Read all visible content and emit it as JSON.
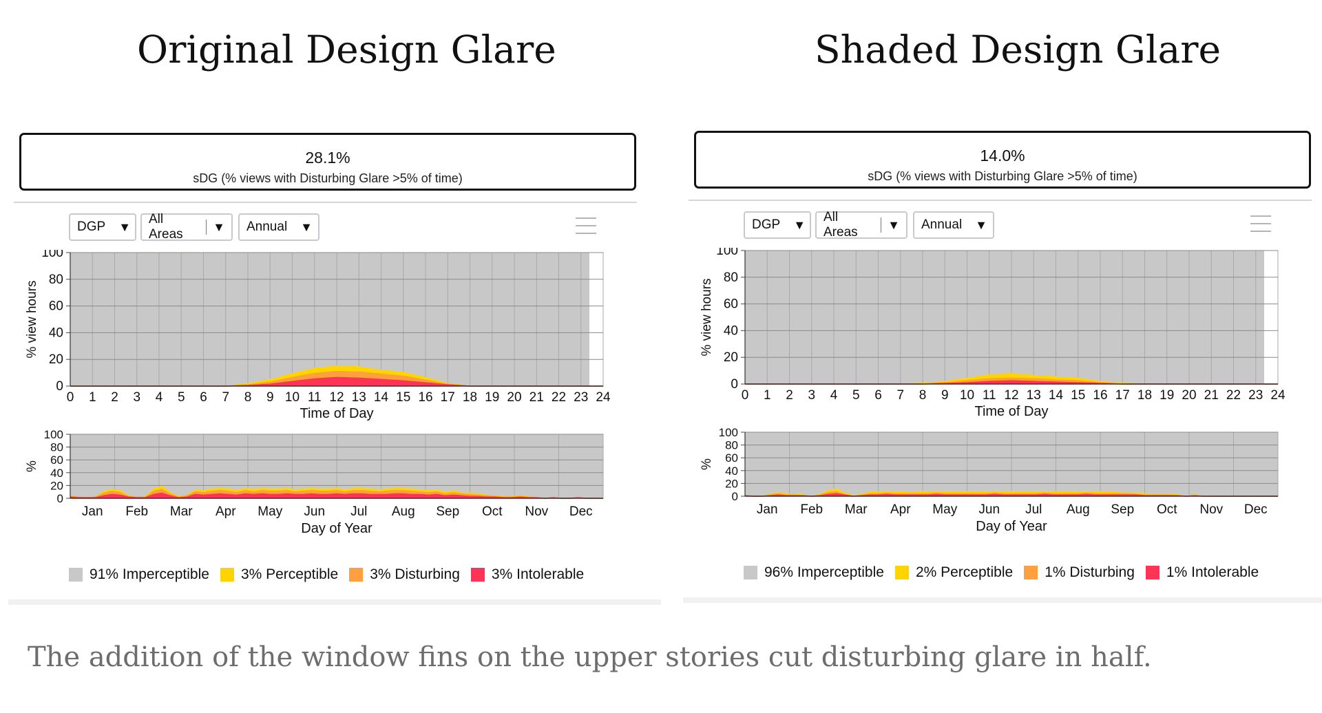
{
  "headings": [
    "Original Design Glare",
    "Shaded Design Glare"
  ],
  "caption": "The addition of the window fins on the upper stories cut disturbing glare in half.",
  "colors": {
    "imperceptible": "#c8c8c8",
    "perceptible": "#ffd400",
    "disturbing": "#ff9f40",
    "intolerable": "#ff3355"
  },
  "panels": [
    {
      "metric_value": "28.1%",
      "metric_caption": "sDG (% views with Disturbing Glare >5% of time)",
      "dropdowns": [
        "DGP",
        "All Areas",
        "Annual"
      ],
      "menu_icon": "hamburger-menu-icon",
      "legend": [
        "91% Imperceptible",
        "3% Perceptible",
        "3% Disturbing",
        "3% Intolerable"
      ]
    },
    {
      "metric_value": "14.0%",
      "metric_caption": "sDG (% views with Disturbing Glare >5% of time)",
      "dropdowns": [
        "DGP",
        "All Areas",
        "Annual"
      ],
      "menu_icon": "hamburger-menu-icon",
      "legend": [
        "96% Imperceptible",
        "2% Perceptible",
        "1% Disturbing",
        "1% Intolerable"
      ]
    }
  ],
  "chart_data": [
    {
      "type": "area",
      "chart": "Original Design Glare - time of day",
      "xlabel": "Time of Day",
      "ylabel": "% view hours",
      "xlim": [
        0,
        24
      ],
      "ylim": [
        0,
        100
      ],
      "x_ticks": [
        "0",
        "1",
        "2",
        "3",
        "4",
        "5",
        "6",
        "7",
        "8",
        "9",
        "10",
        "11",
        "12",
        "13",
        "14",
        "15",
        "16",
        "17",
        "18",
        "19",
        "20",
        "21",
        "22",
        "23",
        "24"
      ],
      "y_ticks": [
        "0",
        "20",
        "40",
        "60",
        "80",
        "100"
      ],
      "x": [
        0,
        1,
        2,
        3,
        4,
        5,
        6,
        7,
        8,
        9,
        10,
        11,
        12,
        13,
        14,
        15,
        16,
        17,
        18,
        19,
        20,
        21,
        22,
        23,
        24
      ],
      "stacking": "cumulative",
      "series": [
        {
          "name": "Intolerable",
          "values": [
            0,
            0,
            0,
            0,
            0,
            0,
            0,
            0,
            0.5,
            1.5,
            3.5,
            5.5,
            6.5,
            6,
            5,
            4,
            2.5,
            1,
            0,
            0,
            0,
            0,
            0,
            0,
            0
          ]
        },
        {
          "name": "Disturbing",
          "values": [
            0,
            0,
            0,
            0,
            0,
            0,
            0,
            0,
            0.5,
            1.5,
            3,
            4,
            4.5,
            4.5,
            4,
            3.5,
            2,
            0.5,
            0,
            0,
            0,
            0,
            0,
            0,
            0
          ]
        },
        {
          "name": "Perceptible",
          "values": [
            0,
            0,
            0,
            0,
            0,
            0,
            0,
            0,
            1,
            2,
            3,
            4,
            4,
            4,
            3,
            3,
            2,
            0.5,
            0,
            0,
            0,
            0,
            0,
            0,
            0
          ]
        }
      ],
      "grid": true
    },
    {
      "type": "area",
      "chart": "Original Design Glare - day of year",
      "xlabel": "Day of Year",
      "ylabel": "%",
      "ylim": [
        0,
        100
      ],
      "x_ticks": [
        "Jan",
        "Feb",
        "Mar",
        "Apr",
        "May",
        "Jun",
        "Jul",
        "Aug",
        "Sep",
        "Oct",
        "Nov",
        "Dec"
      ],
      "y_ticks": [
        "0",
        "20",
        "40",
        "60",
        "80",
        "100"
      ],
      "stacking": "cumulative",
      "series": [
        {
          "name": "Intolerable",
          "values": [
            2,
            1,
            1,
            1,
            4,
            6,
            5,
            2,
            1,
            1,
            6,
            8,
            4,
            1,
            2,
            6,
            5,
            6,
            7,
            6,
            5,
            7,
            6,
            7,
            6,
            6,
            7,
            6,
            6,
            7,
            6,
            6,
            7,
            6,
            7,
            7,
            6,
            6,
            6,
            7,
            7,
            6,
            6,
            5,
            6,
            4,
            5,
            4,
            3,
            3,
            2,
            2,
            1,
            1,
            2,
            1,
            1,
            0,
            1,
            0,
            0,
            1,
            0,
            0,
            0
          ]
        },
        {
          "name": "Disturbing",
          "values": [
            1,
            1,
            0,
            1,
            4,
            5,
            4,
            1,
            1,
            1,
            5,
            6,
            3,
            1,
            2,
            4,
            4,
            5,
            5,
            5,
            4,
            5,
            4,
            5,
            5,
            5,
            5,
            4,
            5,
            5,
            5,
            5,
            5,
            4,
            5,
            5,
            5,
            4,
            5,
            5,
            5,
            5,
            4,
            4,
            4,
            3,
            4,
            3,
            3,
            2,
            2,
            1,
            1,
            1,
            1,
            1,
            0,
            0,
            0,
            0,
            0,
            0,
            0,
            0,
            0
          ]
        },
        {
          "name": "Perceptible",
          "values": [
            1,
            0,
            0,
            0,
            3,
            3,
            3,
            1,
            0,
            1,
            4,
            5,
            2,
            1,
            1,
            3,
            3,
            4,
            4,
            4,
            3,
            4,
            4,
            4,
            4,
            4,
            4,
            3,
            4,
            4,
            4,
            4,
            4,
            3,
            4,
            4,
            4,
            3,
            4,
            4,
            4,
            4,
            3,
            3,
            3,
            3,
            3,
            2,
            2,
            2,
            1,
            1,
            1,
            1,
            1,
            1,
            0,
            0,
            0,
            0,
            0,
            0,
            0,
            0,
            0
          ]
        }
      ],
      "grid": true
    },
    {
      "type": "area",
      "chart": "Shaded Design Glare - time of day",
      "xlabel": "Time of Day",
      "ylabel": "% view hours",
      "xlim": [
        0,
        24
      ],
      "ylim": [
        0,
        100
      ],
      "x_ticks": [
        "0",
        "1",
        "2",
        "3",
        "4",
        "5",
        "6",
        "7",
        "8",
        "9",
        "10",
        "11",
        "12",
        "13",
        "14",
        "15",
        "16",
        "17",
        "18",
        "19",
        "20",
        "21",
        "22",
        "23",
        "24"
      ],
      "y_ticks": [
        "0",
        "20",
        "40",
        "60",
        "80",
        "100"
      ],
      "x": [
        0,
        1,
        2,
        3,
        4,
        5,
        6,
        7,
        8,
        9,
        10,
        11,
        12,
        13,
        14,
        15,
        16,
        17,
        18,
        19,
        20,
        21,
        22,
        23,
        24
      ],
      "stacking": "cumulative",
      "series": [
        {
          "name": "Intolerable",
          "values": [
            0,
            0,
            0,
            0,
            0,
            0,
            0,
            0,
            0,
            0.5,
            1,
            2,
            2.5,
            2,
            1.5,
            1,
            0.5,
            0,
            0,
            0,
            0,
            0,
            0,
            0,
            0
          ]
        },
        {
          "name": "Disturbing",
          "values": [
            0,
            0,
            0,
            0,
            0,
            0,
            0,
            0,
            0,
            0.5,
            1.5,
            2,
            2,
            2,
            1.5,
            1.5,
            0.5,
            0,
            0,
            0,
            0,
            0,
            0,
            0,
            0
          ]
        },
        {
          "name": "Perceptible",
          "values": [
            0,
            0,
            0,
            0,
            0,
            0,
            0,
            0,
            0.5,
            1,
            2,
            3,
            3.5,
            2.5,
            2.5,
            2,
            1,
            0.5,
            0,
            0,
            0,
            0,
            0,
            0,
            0
          ]
        }
      ],
      "grid": true
    },
    {
      "type": "area",
      "chart": "Shaded Design Glare - day of year",
      "xlabel": "Day of Year",
      "ylabel": "%",
      "ylim": [
        0,
        100
      ],
      "x_ticks": [
        "Jan",
        "Feb",
        "Mar",
        "Apr",
        "May",
        "Jun",
        "Jul",
        "Aug",
        "Sep",
        "Oct",
        "Nov",
        "Dec"
      ],
      "y_ticks": [
        "0",
        "20",
        "40",
        "60",
        "80",
        "100"
      ],
      "stacking": "cumulative",
      "series": [
        {
          "name": "Intolerable",
          "values": [
            1,
            0,
            0,
            1,
            2,
            1,
            1,
            1,
            0,
            1,
            3,
            4,
            2,
            0,
            1,
            2,
            2,
            3,
            2,
            2,
            2,
            2,
            2,
            3,
            2,
            2,
            2,
            2,
            2,
            2,
            3,
            2,
            2,
            2,
            2,
            2,
            3,
            2,
            2,
            2,
            2,
            3,
            2,
            2,
            2,
            2,
            2,
            2,
            1,
            1,
            1,
            1,
            1,
            0,
            1,
            0,
            0,
            0,
            0,
            0,
            0,
            0,
            0,
            0,
            0
          ]
        },
        {
          "name": "Disturbing",
          "values": [
            0,
            0,
            0,
            1,
            2,
            1,
            1,
            0,
            0,
            1,
            3,
            3,
            1,
            0,
            1,
            2,
            2,
            2,
            2,
            2,
            2,
            2,
            2,
            2,
            2,
            2,
            2,
            2,
            2,
            2,
            2,
            2,
            2,
            2,
            2,
            2,
            2,
            2,
            2,
            2,
            2,
            2,
            2,
            2,
            2,
            2,
            2,
            1,
            1,
            1,
            1,
            1,
            0,
            0,
            0,
            0,
            0,
            0,
            0,
            0,
            0,
            0,
            0,
            0,
            0
          ]
        },
        {
          "name": "Perceptible",
          "values": [
            1,
            0,
            0,
            1,
            2,
            2,
            1,
            1,
            0,
            1,
            3,
            4,
            2,
            1,
            1,
            3,
            3,
            3,
            3,
            3,
            2,
            3,
            3,
            3,
            3,
            3,
            3,
            3,
            3,
            3,
            3,
            3,
            3,
            3,
            3,
            3,
            3,
            3,
            3,
            3,
            3,
            3,
            3,
            3,
            3,
            2,
            2,
            2,
            2,
            1,
            1,
            1,
            1,
            1,
            1,
            1,
            0,
            0,
            0,
            0,
            0,
            0,
            0,
            0,
            0
          ]
        }
      ],
      "grid": true
    }
  ]
}
